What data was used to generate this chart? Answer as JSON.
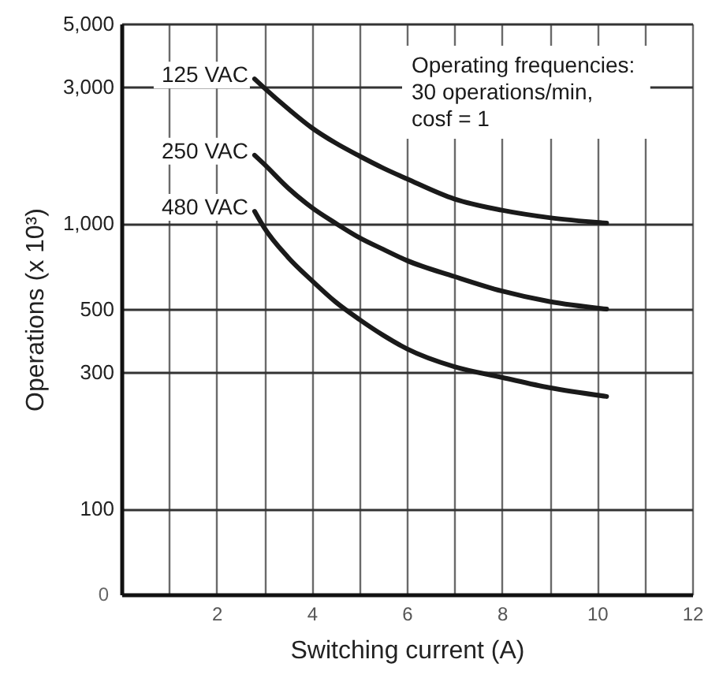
{
  "chart_data": {
    "type": "line",
    "xlabel": "Switching current (A)",
    "ylabel": "Operations (x 10³)",
    "annotations": [
      "Operating frequencies:\n30 operations/min,\ncosf = 1",
      "0"
    ],
    "x": [
      2.8,
      3,
      3.5,
      4,
      4.5,
      5,
      5.5,
      6,
      7,
      8,
      9,
      10.2
    ],
    "series": [
      {
        "name": "125 VAC",
        "color": "#1a1a1a",
        "values": [
          3200,
          2980,
          2520,
          2160,
          1910,
          1720,
          1560,
          1430,
          1215,
          1110,
          1045,
          1000
        ]
      },
      {
        "name": "250 VAC",
        "color": "#1a1a1a",
        "values": [
          1730,
          1610,
          1330,
          1135,
          1000,
          890,
          810,
          740,
          650,
          578,
          531,
          500
        ]
      },
      {
        "name": "480 VAC",
        "color": "#1a1a1a",
        "values": [
          1100,
          965,
          760,
          630,
          530,
          460,
          405,
          363,
          314,
          288,
          265,
          247
        ]
      }
    ],
    "xlim": [
      0,
      12
    ],
    "xticks": [
      {
        "value": 1,
        "label": null
      },
      2,
      {
        "value": 3,
        "label": null
      },
      4,
      {
        "value": 5,
        "label": null
      },
      6,
      {
        "value": 7,
        "label": null
      },
      8,
      {
        "value": 9,
        "label": null
      },
      10,
      {
        "value": 11,
        "label": null
      },
      12
    ],
    "ylim": [
      50,
      5000
    ],
    "yticks": [
      100,
      300,
      500,
      {
        "value": 1000,
        "label": "1,000"
      },
      {
        "value": 3000,
        "label": "3,000"
      },
      {
        "value": 5000,
        "label": "5,000"
      }
    ],
    "log": true,
    "grid": true,
    "marker": "none",
    "line_style": "solid"
  }
}
